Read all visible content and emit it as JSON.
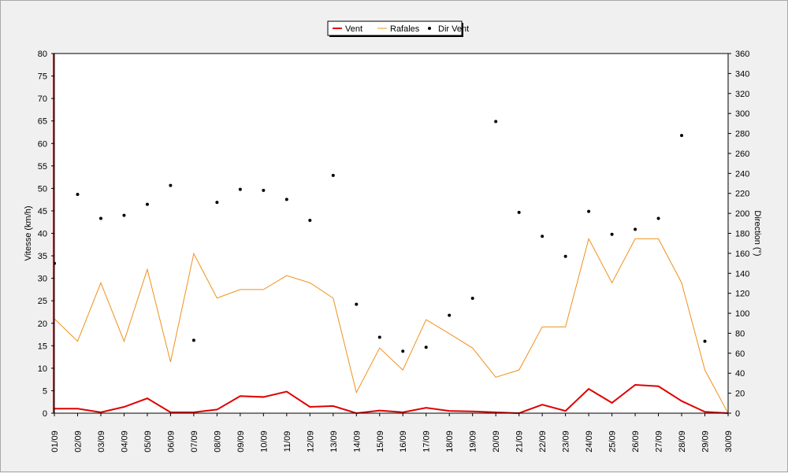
{
  "chart_data": {
    "type": "line",
    "title": "",
    "x": [
      "01/09",
      "02/09",
      "03/09",
      "04/09",
      "05/09",
      "06/09",
      "07/09",
      "08/09",
      "09/09",
      "10/09",
      "11/09",
      "12/09",
      "13/09",
      "14/09",
      "15/09",
      "16/09",
      "17/09",
      "18/09",
      "19/09",
      "20/09",
      "21/09",
      "22/09",
      "23/09",
      "24/09",
      "25/09",
      "26/09",
      "27/09",
      "28/09",
      "29/09",
      "30/09"
    ],
    "ylabel": "Vitesse (km/h)",
    "ylim": [
      0,
      80
    ],
    "yticks": [
      0,
      5,
      10,
      15,
      20,
      25,
      30,
      35,
      40,
      45,
      50,
      55,
      60,
      65,
      70,
      75,
      80
    ],
    "y2label": "Direction (°)",
    "y2lim": [
      0,
      360
    ],
    "y2ticks": [
      0,
      20,
      40,
      60,
      80,
      100,
      120,
      140,
      160,
      180,
      200,
      220,
      240,
      260,
      280,
      300,
      320,
      340,
      360
    ],
    "legend_position": "top-center",
    "series": [
      {
        "name": "Vent",
        "axis": "left",
        "style": "line",
        "color": "#e00000",
        "values": [
          1.0,
          1.0,
          0.2,
          1.4,
          3.3,
          0.2,
          0.2,
          0.8,
          3.8,
          3.6,
          4.8,
          1.4,
          1.6,
          0.0,
          0.6,
          0.2,
          1.2,
          0.5,
          0.4,
          0.2,
          0.0,
          1.9,
          0.5,
          5.4,
          2.3,
          6.3,
          6.0,
          2.7,
          0.3,
          0.0
        ]
      },
      {
        "name": "Rafales",
        "axis": "left",
        "style": "line",
        "color": "#f0901c",
        "values": [
          21.0,
          16.0,
          29.0,
          16.0,
          32.0,
          11.4,
          35.5,
          25.6,
          27.5,
          27.5,
          30.6,
          29.0,
          25.6,
          4.6,
          14.5,
          9.6,
          20.8,
          17.7,
          14.5,
          8.0,
          9.6,
          19.2,
          19.2,
          38.8,
          29.0,
          38.8,
          38.8,
          29.0,
          9.6,
          0.0
        ]
      },
      {
        "name": "Dir Vent",
        "axis": "right",
        "style": "scatter",
        "color": "#000000",
        "values": [
          150,
          219,
          195,
          198,
          209,
          228,
          73,
          211,
          224,
          223,
          214,
          193,
          238,
          109,
          76,
          62,
          66,
          98,
          115,
          292,
          201,
          177,
          157,
          202,
          179,
          184,
          195,
          278,
          72,
          null
        ]
      }
    ]
  }
}
